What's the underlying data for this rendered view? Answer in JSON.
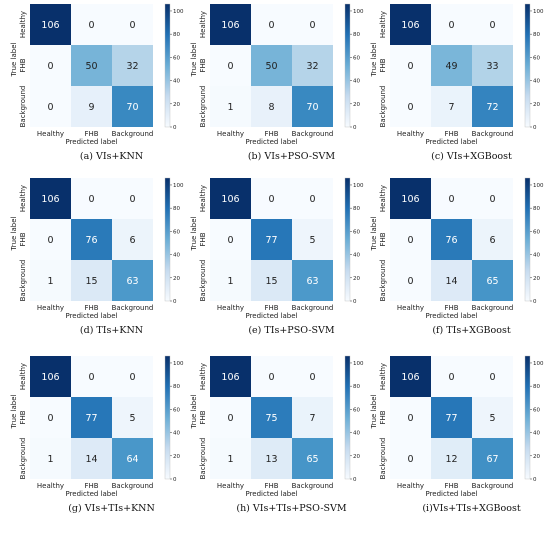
{
  "figure": {
    "colors": {
      "cmap_low": "#f7fbff",
      "cmap_mid": "#6baed6",
      "cmap_high": "#08306b",
      "text_dark": "#222222",
      "text_light": "#ffffff"
    }
  },
  "chart_data": [
    {
      "type": "heatmap",
      "caption": "(a) VIs+KNN",
      "xlabel": "Predicted label",
      "ylabel": "True label",
      "x_categories": [
        "Healthy",
        "FHB",
        "Background"
      ],
      "y_categories": [
        "Healthy",
        "FHB",
        "Background"
      ],
      "values": [
        [
          106,
          0,
          0
        ],
        [
          0,
          50,
          32
        ],
        [
          0,
          9,
          70
        ]
      ],
      "colorbar": {
        "min": 0,
        "max": 106,
        "ticks": [
          0,
          20,
          40,
          60,
          80,
          100
        ]
      }
    },
    {
      "type": "heatmap",
      "caption": "(b) VIs+PSO-SVM",
      "xlabel": "Predicted label",
      "ylabel": "True label",
      "x_categories": [
        "Healthy",
        "FHB",
        "Background"
      ],
      "y_categories": [
        "Healthy",
        "FHB",
        "Background"
      ],
      "values": [
        [
          106,
          0,
          0
        ],
        [
          0,
          50,
          32
        ],
        [
          1,
          8,
          70
        ]
      ],
      "colorbar": {
        "min": 0,
        "max": 106,
        "ticks": [
          0,
          20,
          40,
          60,
          80,
          100
        ]
      }
    },
    {
      "type": "heatmap",
      "caption": "(c) VIs+XGBoost",
      "xlabel": "Predicted label",
      "ylabel": "True label",
      "x_categories": [
        "Healthy",
        "FHB",
        "Background"
      ],
      "y_categories": [
        "Healthy",
        "FHB",
        "Background"
      ],
      "values": [
        [
          106,
          0,
          0
        ],
        [
          0,
          49,
          33
        ],
        [
          0,
          7,
          72
        ]
      ],
      "colorbar": {
        "min": 0,
        "max": 106,
        "ticks": [
          0,
          20,
          40,
          60,
          80,
          100
        ]
      }
    },
    {
      "type": "heatmap",
      "caption": "(d) TIs+KNN",
      "xlabel": "Predicted label",
      "ylabel": "True label",
      "x_categories": [
        "Healthy",
        "FHB",
        "Background"
      ],
      "y_categories": [
        "Healthy",
        "FHB",
        "Background"
      ],
      "values": [
        [
          106,
          0,
          0
        ],
        [
          0,
          76,
          6
        ],
        [
          1,
          15,
          63
        ]
      ],
      "colorbar": {
        "min": 0,
        "max": 106,
        "ticks": [
          0,
          20,
          40,
          60,
          80,
          100
        ]
      }
    },
    {
      "type": "heatmap",
      "caption": "(e) TIs+PSO-SVM",
      "xlabel": "Predicted label",
      "ylabel": "True label",
      "x_categories": [
        "Healthy",
        "FHB",
        "Background"
      ],
      "y_categories": [
        "Healthy",
        "FHB",
        "Background"
      ],
      "values": [
        [
          106,
          0,
          0
        ],
        [
          0,
          77,
          5
        ],
        [
          1,
          15,
          63
        ]
      ],
      "colorbar": {
        "min": 0,
        "max": 106,
        "ticks": [
          0,
          20,
          40,
          60,
          80,
          100
        ]
      }
    },
    {
      "type": "heatmap",
      "caption": "(f) TIs+XGBoost",
      "xlabel": "Predicted label",
      "ylabel": "True label",
      "x_categories": [
        "Healthy",
        "FHB",
        "Background"
      ],
      "y_categories": [
        "Healthy",
        "FHB",
        "Background"
      ],
      "values": [
        [
          106,
          0,
          0
        ],
        [
          0,
          76,
          6
        ],
        [
          0,
          14,
          65
        ]
      ],
      "colorbar": {
        "min": 0,
        "max": 106,
        "ticks": [
          0,
          20,
          40,
          60,
          80,
          100
        ]
      }
    },
    {
      "type": "heatmap",
      "caption": "(g) VIs+TIs+KNN",
      "xlabel": "Predicted label",
      "ylabel": "True label",
      "x_categories": [
        "Healthy",
        "FHB",
        "Background"
      ],
      "y_categories": [
        "Healthy",
        "FHB",
        "Background"
      ],
      "values": [
        [
          106,
          0,
          0
        ],
        [
          0,
          77,
          5
        ],
        [
          1,
          14,
          64
        ]
      ],
      "colorbar": {
        "min": 0,
        "max": 106,
        "ticks": [
          0,
          20,
          40,
          60,
          80,
          100
        ]
      }
    },
    {
      "type": "heatmap",
      "caption": "(h) VIs+TIs+PSO-SVM",
      "xlabel": "Predicted label",
      "ylabel": "True label",
      "x_categories": [
        "Healthy",
        "FHB",
        "Background"
      ],
      "y_categories": [
        "Healthy",
        "FHB",
        "Background"
      ],
      "values": [
        [
          106,
          0,
          0
        ],
        [
          0,
          75,
          7
        ],
        [
          1,
          13,
          65
        ]
      ],
      "colorbar": {
        "min": 0,
        "max": 106,
        "ticks": [
          0,
          20,
          40,
          60,
          80,
          100
        ]
      }
    },
    {
      "type": "heatmap",
      "caption": "(i)VIs+TIs+XGBoost",
      "xlabel": "Predicted label",
      "ylabel": "True label",
      "x_categories": [
        "Healthy",
        "FHB",
        "Background"
      ],
      "y_categories": [
        "Healthy",
        "FHB",
        "Background"
      ],
      "values": [
        [
          106,
          0,
          0
        ],
        [
          0,
          77,
          5
        ],
        [
          0,
          12,
          67
        ]
      ],
      "colorbar": {
        "min": 0,
        "max": 106,
        "ticks": [
          0,
          20,
          40,
          60,
          80,
          100
        ]
      }
    }
  ]
}
